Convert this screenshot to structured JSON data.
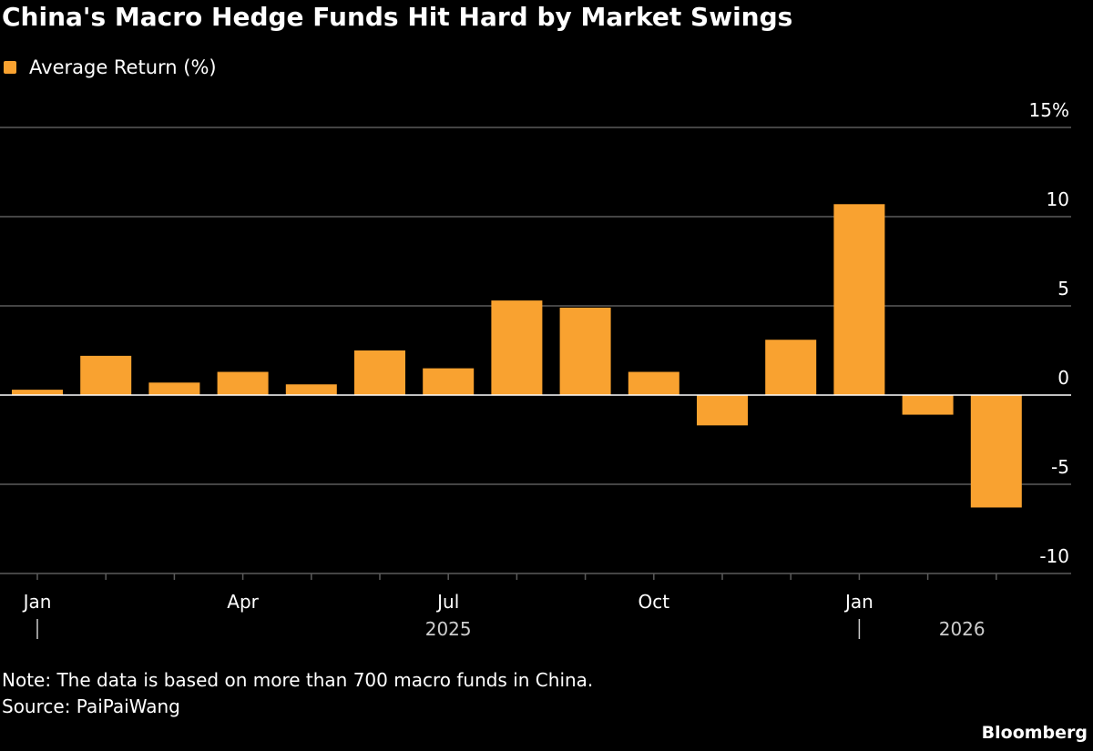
{
  "chart_data": {
    "type": "bar",
    "title": "China's Macro Hedge Funds Hit Hard by Market Swings",
    "legend": [
      {
        "label": "Average Return (%)",
        "color": "#f9a230"
      }
    ],
    "series": [
      {
        "name": "Average Return (%)",
        "values": [
          0.3,
          2.2,
          0.7,
          1.3,
          0.6,
          2.5,
          1.5,
          5.3,
          4.9,
          1.3,
          -1.7,
          3.1,
          10.7,
          -1.1,
          -6.3
        ]
      }
    ],
    "months": [
      "2025-01",
      "2025-02",
      "2025-03",
      "2025-04",
      "2025-05",
      "2025-06",
      "2025-07",
      "2025-08",
      "2025-09",
      "2025-10",
      "2025-11",
      "2025-12",
      "2026-01",
      "2026-02",
      "2026-03"
    ],
    "x_tick_labels": [
      {
        "index": 0,
        "label": "Jan"
      },
      {
        "index": 3,
        "label": "Apr"
      },
      {
        "index": 6,
        "label": "Jul"
      },
      {
        "index": 9,
        "label": "Oct"
      },
      {
        "index": 12,
        "label": "Jan"
      }
    ],
    "year_labels": [
      {
        "label": "2025",
        "center_index": 6,
        "separator_index": 0
      },
      {
        "label": "2026",
        "center_index": 13.5,
        "separator_index": 12
      }
    ],
    "y_ticks": [
      {
        "value": 15,
        "label": "15%"
      },
      {
        "value": 10,
        "label": "10"
      },
      {
        "value": 5,
        "label": "5"
      },
      {
        "value": 0,
        "label": "0"
      },
      {
        "value": -5,
        "label": "-5"
      },
      {
        "value": -10,
        "label": "-10"
      }
    ],
    "ylim": [
      -10,
      15
    ],
    "xlabel": "",
    "ylabel": "",
    "grid": true
  },
  "note": "Note: The data is based on more than 700 macro funds in China.",
  "source": "Source: PaiPaiWang",
  "brand": "Bloomberg",
  "colors": {
    "bar": "#f9a230",
    "grid": "#5a5a5a",
    "zero_line": "#ffffff",
    "background": "#000000"
  }
}
